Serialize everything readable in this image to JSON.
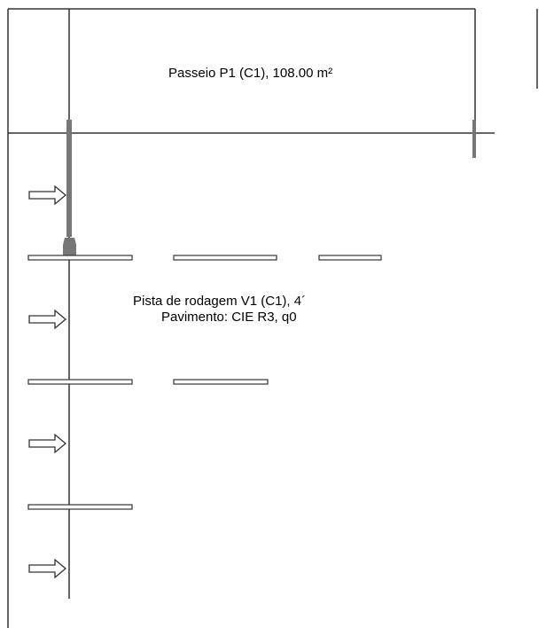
{
  "sidewalk": {
    "label": "Passeio P1 (C1), 108.00 m²"
  },
  "roadway": {
    "label_line1": "Pista de rodagem V1 (C1), 4´",
    "label_line2": "Pavimento: CIE R3, q0"
  },
  "colors": {
    "line": "#333333",
    "pole": "#777777",
    "background": "#ffffff"
  }
}
